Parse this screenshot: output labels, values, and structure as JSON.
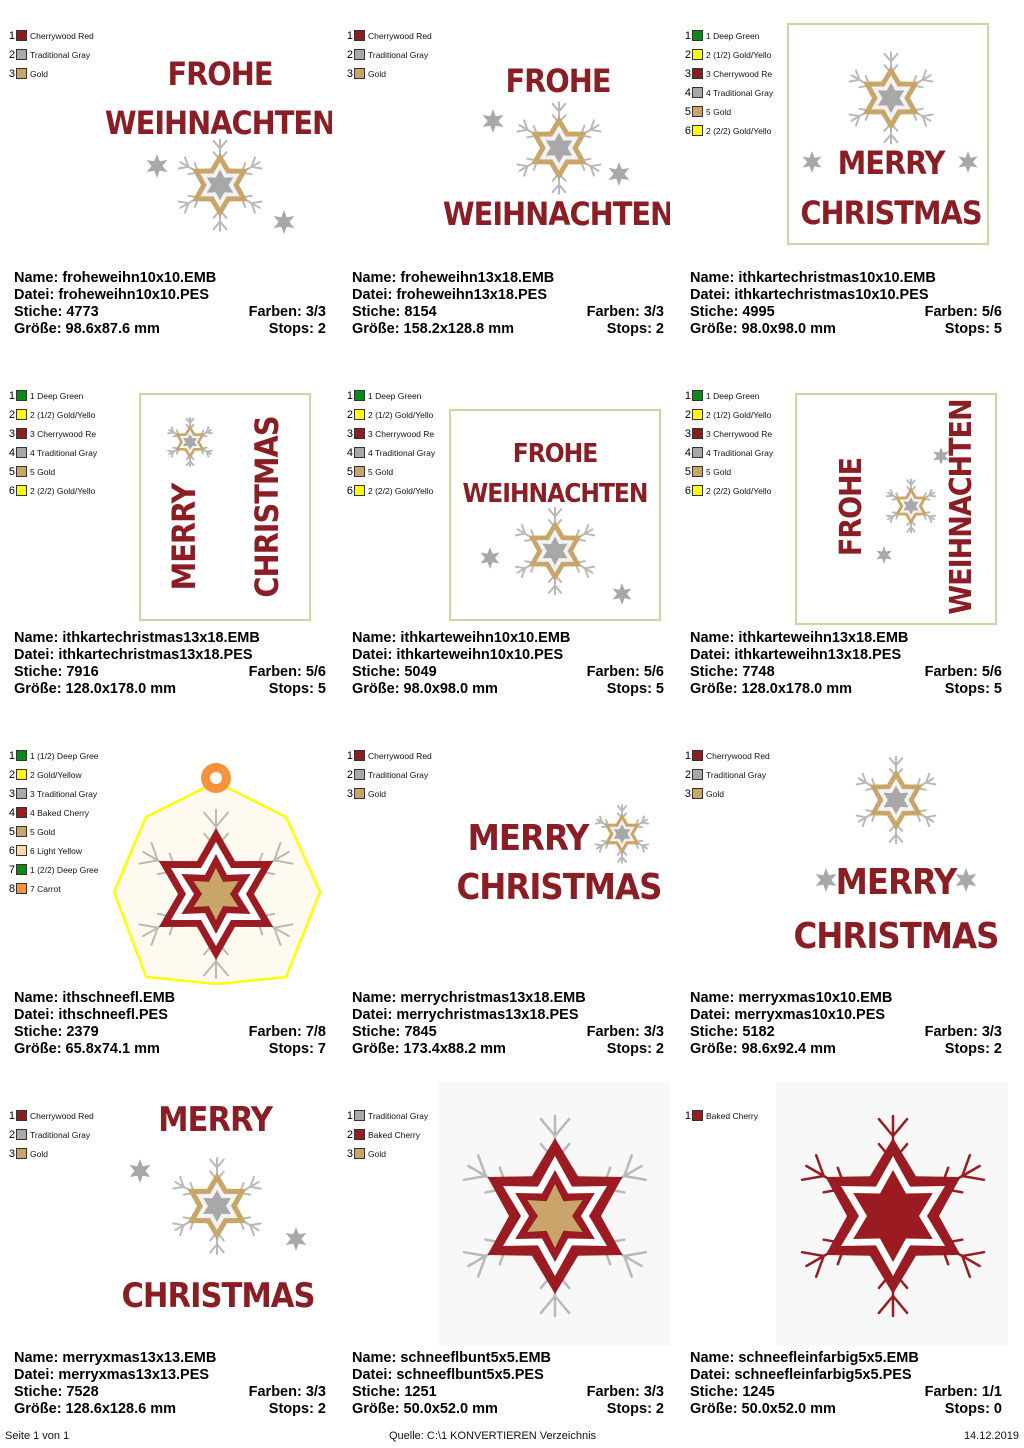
{
  "palette": {
    "Cherrywood Red": "#8b1d24",
    "Traditional Gray": "#a8a8a8",
    "Gold": "#c8a66a",
    "Deep Green": "#0b8a18",
    "Gold/Yellow": "#ffff00",
    "Baked Cherry": "#9b1b22",
    "Light Yellow": "#fcd8a6",
    "Carrot": "#f5923a"
  },
  "designs": [
    {
      "preview": "frohe-weihnachten-square",
      "colors": [
        {
          "num": "1",
          "label": "Cherrywood Red",
          "swatch": "#8b1d24"
        },
        {
          "num": "2",
          "label": "Traditional Gray",
          "swatch": "#a8a8a8"
        },
        {
          "num": "3",
          "label": "Gold",
          "swatch": "#c8a66a"
        }
      ],
      "name": "Name: froheweihn10x10.EMB",
      "datei": "Datei: froheweihn10x10.PES",
      "stiche": "Stiche: 4773",
      "farben": "Farben: 3/3",
      "groesse": "Größe: 98.6x87.6 mm",
      "stops": "Stops: 2"
    },
    {
      "preview": "frohe-weihnachten-tall",
      "colors": [
        {
          "num": "1",
          "label": "Cherrywood Red",
          "swatch": "#8b1d24"
        },
        {
          "num": "2",
          "label": "Traditional Gray",
          "swatch": "#a8a8a8"
        },
        {
          "num": "3",
          "label": "Gold",
          "swatch": "#c8a66a"
        }
      ],
      "name": "Name: froheweihn13x18.EMB",
      "datei": "Datei: froheweihn13x18.PES",
      "stiche": "Stiche: 8154",
      "farben": "Farben: 3/3",
      "groesse": "Größe: 158.2x128.8 mm",
      "stops": "Stops: 2"
    },
    {
      "preview": "card-merry-christmas-square",
      "colors": [
        {
          "num": "1",
          "label": "1 Deep Green",
          "swatch": "#0b8a18"
        },
        {
          "num": "2",
          "label": "2 (1/2) Gold/Yello",
          "swatch": "#ffff00"
        },
        {
          "num": "3",
          "label": "3 Cherrywood Re",
          "swatch": "#8b1d24"
        },
        {
          "num": "4",
          "label": "4 Traditional Gray",
          "swatch": "#a8a8a8"
        },
        {
          "num": "5",
          "label": "5 Gold",
          "swatch": "#c8a66a"
        },
        {
          "num": "6",
          "label": "2 (2/2) Gold/Yello",
          "swatch": "#ffff00"
        }
      ],
      "name": "Name: ithkartechristmas10x10.EMB",
      "datei": "Datei: ithkartechristmas10x10.PES",
      "stiche": "Stiche: 4995",
      "farben": "Farben: 5/6",
      "groesse": "Größe: 98.0x98.0 mm",
      "stops": "Stops: 5"
    },
    {
      "preview": "card-merry-christmas-vertical",
      "colors": [
        {
          "num": "1",
          "label": "1 Deep Green",
          "swatch": "#0b8a18"
        },
        {
          "num": "2",
          "label": "2 (1/2) Gold/Yello",
          "swatch": "#ffff00"
        },
        {
          "num": "3",
          "label": "3 Cherrywood Re",
          "swatch": "#8b1d24"
        },
        {
          "num": "4",
          "label": "4 Traditional Gray",
          "swatch": "#a8a8a8"
        },
        {
          "num": "5",
          "label": "5 Gold",
          "swatch": "#c8a66a"
        },
        {
          "num": "6",
          "label": "2 (2/2) Gold/Yello",
          "swatch": "#ffff00"
        }
      ],
      "name": "Name: ithkartechristmas13x18.EMB",
      "datei": "Datei: ithkartechristmas13x18.PES",
      "stiche": "Stiche: 7916",
      "farben": "Farben: 5/6",
      "groesse": "Größe: 128.0x178.0 mm",
      "stops": "Stops: 5"
    },
    {
      "preview": "card-frohe-weihnachten-square",
      "colors": [
        {
          "num": "1",
          "label": "1 Deep Green",
          "swatch": "#0b8a18"
        },
        {
          "num": "2",
          "label": "2 (1/2) Gold/Yello",
          "swatch": "#ffff00"
        },
        {
          "num": "3",
          "label": "3 Cherrywood Re",
          "swatch": "#8b1d24"
        },
        {
          "num": "4",
          "label": "4 Traditional Gray",
          "swatch": "#a8a8a8"
        },
        {
          "num": "5",
          "label": "5 Gold",
          "swatch": "#c8a66a"
        },
        {
          "num": "6",
          "label": "2 (2/2) Gold/Yello",
          "swatch": "#ffff00"
        }
      ],
      "name": "Name: ithkarteweihn10x10.EMB",
      "datei": "Datei: ithkarteweihn10x10.PES",
      "stiche": "Stiche: 5049",
      "farben": "Farben: 5/6",
      "groesse": "Größe: 98.0x98.0 mm",
      "stops": "Stops: 5"
    },
    {
      "preview": "card-frohe-weihnachten-vertical",
      "colors": [
        {
          "num": "1",
          "label": "1 Deep Green",
          "swatch": "#0b8a18"
        },
        {
          "num": "2",
          "label": "2 (1/2) Gold/Yello",
          "swatch": "#ffff00"
        },
        {
          "num": "3",
          "label": "3 Cherrywood Re",
          "swatch": "#8b1d24"
        },
        {
          "num": "4",
          "label": "4 Traditional Gray",
          "swatch": "#a8a8a8"
        },
        {
          "num": "5",
          "label": "5 Gold",
          "swatch": "#c8a66a"
        },
        {
          "num": "6",
          "label": "2 (2/2) Gold/Yello",
          "swatch": "#ffff00"
        }
      ],
      "name": "Name: ithkarteweihn13x18.EMB",
      "datei": "Datei: ithkarteweihn13x18.PES",
      "stiche": "Stiche: 7748",
      "farben": "Farben: 5/6",
      "groesse": "Größe: 128.0x178.0 mm",
      "stops": "Stops: 5"
    },
    {
      "preview": "snowflake-ornament",
      "colors": [
        {
          "num": "1",
          "label": "1 (1/2) Deep Gree",
          "swatch": "#0b8a18"
        },
        {
          "num": "2",
          "label": "2 Gold/Yellow",
          "swatch": "#ffff00"
        },
        {
          "num": "3",
          "label": "3 Traditional Gray",
          "swatch": "#a8a8a8"
        },
        {
          "num": "4",
          "label": "4 Baked Cherry",
          "swatch": "#9b1b22"
        },
        {
          "num": "5",
          "label": "5 Gold",
          "swatch": "#c8a66a"
        },
        {
          "num": "6",
          "label": "6 Light Yellow",
          "swatch": "#fcd8a6"
        },
        {
          "num": "7",
          "label": "1 (2/2) Deep Gree",
          "swatch": "#0b8a18"
        },
        {
          "num": "8",
          "label": "7 Carrot",
          "swatch": "#f5923a"
        }
      ],
      "name": "Name: ithschneefl.EMB",
      "datei": "Datei: ithschneefl.PES",
      "stiche": "Stiche: 2379",
      "farben": "Farben: 7/8",
      "groesse": "Größe: 65.8x74.1 mm",
      "stops": "Stops: 7"
    },
    {
      "preview": "merry-christmas-wide",
      "colors": [
        {
          "num": "1",
          "label": "Cherrywood Red",
          "swatch": "#8b1d24"
        },
        {
          "num": "2",
          "label": "Traditional Gray",
          "swatch": "#a8a8a8"
        },
        {
          "num": "3",
          "label": "Gold",
          "swatch": "#c8a66a"
        }
      ],
      "name": "Name: merrychristmas13x18.EMB",
      "datei": "Datei: merrychristmas13x18.PES",
      "stiche": "Stiche: 7845",
      "farben": "Farben: 3/3",
      "groesse": "Größe: 173.4x88.2 mm",
      "stops": "Stops: 2"
    },
    {
      "preview": "merry-christmas-square",
      "colors": [
        {
          "num": "1",
          "label": "Cherrywood Red",
          "swatch": "#8b1d24"
        },
        {
          "num": "2",
          "label": "Traditional Gray",
          "swatch": "#a8a8a8"
        },
        {
          "num": "3",
          "label": "Gold",
          "swatch": "#c8a66a"
        }
      ],
      "name": "Name: merryxmas10x10.EMB",
      "datei": "Datei: merryxmas10x10.PES",
      "stiche": "Stiche: 5182",
      "farben": "Farben: 3/3",
      "groesse": "Größe: 98.6x92.4 mm",
      "stops": "Stops: 2"
    },
    {
      "preview": "merry-christmas-star-between",
      "colors": [
        {
          "num": "1",
          "label": "Cherrywood Red",
          "swatch": "#8b1d24"
        },
        {
          "num": "2",
          "label": "Traditional Gray",
          "swatch": "#a8a8a8"
        },
        {
          "num": "3",
          "label": "Gold",
          "swatch": "#c8a66a"
        }
      ],
      "name": "Name: merryxmas13x13.EMB",
      "datei": "Datei: merryxmas13x13.PES",
      "stiche": "Stiche: 7528",
      "farben": "Farben: 3/3",
      "groesse": "Größe: 128.6x128.6 mm",
      "stops": "Stops: 2"
    },
    {
      "preview": "snowflake-multicolor",
      "colors": [
        {
          "num": "1",
          "label": "Traditional Gray",
          "swatch": "#a8a8a8"
        },
        {
          "num": "2",
          "label": "Baked Cherry",
          "swatch": "#9b1b22"
        },
        {
          "num": "3",
          "label": "Gold",
          "swatch": "#c8a66a"
        }
      ],
      "name": "Name: schneeflbunt5x5.EMB",
      "datei": "Datei: schneeflbunt5x5.PES",
      "stiche": "Stiche: 1251",
      "farben": "Farben: 3/3",
      "groesse": "Größe: 50.0x52.0 mm",
      "stops": "Stops: 2"
    },
    {
      "preview": "snowflake-single-color",
      "colors": [
        {
          "num": "1",
          "label": "Baked Cherry",
          "swatch": "#9b1b22"
        }
      ],
      "name": "Name: schneefleinfarbig5x5.EMB",
      "datei": "Datei: schneefleinfarbig5x5.PES",
      "stiche": "Stiche: 1245",
      "farben": "Farben: 1/1",
      "groesse": "Größe: 50.0x52.0 mm",
      "stops": "Stops: 0"
    }
  ],
  "artwork_text": {
    "frohe": "FROHE",
    "weihnachten": "WEIHNACHTEN",
    "merry": "MERRY",
    "christmas": "CHRISTMAS"
  },
  "footer": {
    "page": "Seite 1 von 1",
    "source": "Quelle: C:\\1 KONVERTIEREN Verzeichnis",
    "date": "14.12.2019"
  }
}
